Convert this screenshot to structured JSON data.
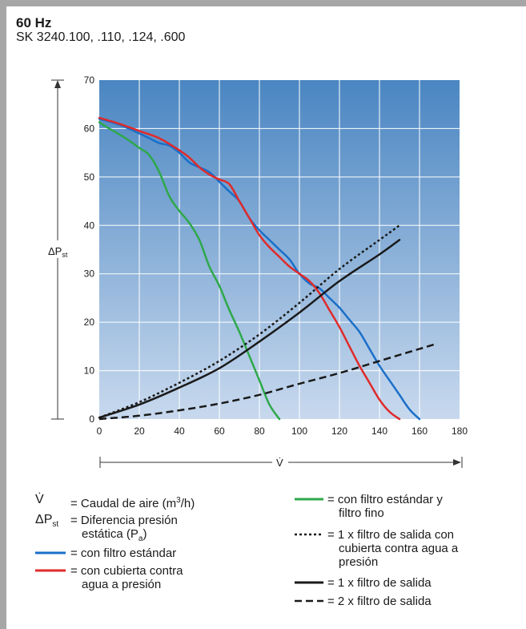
{
  "header": {
    "title": "60 Hz",
    "subtitle": "SK 3240.100, .110, .124, .600"
  },
  "axis_labels": {
    "y_symbol": "ΔP",
    "y_sub": "st",
    "x_symbol": "V̇"
  },
  "legend": {
    "v_symbol": "V̇",
    "v_text_a": "= Caudal de aire (m",
    "v_text_sup": "3",
    "v_text_b": "/h)",
    "p_symbol": "ΔP",
    "p_sub": "st",
    "p_text_1": "= Diferencia presión",
    "p_text_2a": "estática (P",
    "p_text_2sub": "a",
    "p_text_2b": ")",
    "blue_1": "= con filtro estándar",
    "red_1": "= con cubierta contra",
    "red_2": "agua a presión",
    "green_1": "= con filtro estándar y",
    "green_2": "filtro fino",
    "dotted_1": "= 1 x filtro de salida con",
    "dotted_2": "cubierta contra agua a",
    "dotted_3": "presión",
    "solid_1": "= 1 x filtro de salida",
    "dashed_1": "= 2 x filtro de salida"
  },
  "chart_data": {
    "type": "line",
    "title": "",
    "xlabel": "V̇",
    "ylabel": "ΔPst",
    "xlim": [
      0,
      180
    ],
    "ylim": [
      0,
      70
    ],
    "xticks": [
      "0",
      "20",
      "40",
      "60",
      "80",
      "100",
      "120",
      "140",
      "160",
      "180"
    ],
    "yticks": [
      "0",
      "10",
      "20",
      "30",
      "40",
      "50",
      "60",
      "70"
    ],
    "grid": true,
    "background": "blue-gradient",
    "series": [
      {
        "name": "con filtro estándar",
        "color": "#1a6fc9",
        "style": "solid",
        "x": [
          0,
          10,
          20,
          25,
          30,
          35,
          40,
          45,
          50,
          55,
          60,
          65,
          70,
          75,
          80,
          85,
          90,
          95,
          100,
          105,
          110,
          115,
          120,
          125,
          130,
          135,
          140,
          145,
          150,
          155,
          160
        ],
        "y": [
          62,
          60.8,
          59,
          58,
          57,
          56.5,
          55,
          53,
          52,
          51,
          49,
          47,
          45,
          41.5,
          39,
          37,
          35,
          33,
          30,
          28,
          27,
          25,
          23,
          20.5,
          18,
          14.5,
          11,
          8,
          5,
          2,
          0
        ]
      },
      {
        "name": "con cubierta contra agua a presión",
        "color": "#e02a2a",
        "style": "solid",
        "x": [
          0,
          10,
          20,
          30,
          40,
          45,
          50,
          55,
          60,
          65,
          70,
          75,
          80,
          85,
          90,
          95,
          100,
          105,
          110,
          115,
          120,
          125,
          130,
          135,
          140,
          145,
          150
        ],
        "y": [
          62.2,
          61,
          59.5,
          58,
          55.5,
          54,
          52,
          50.5,
          49.5,
          48.5,
          45,
          41.5,
          38,
          35.5,
          33.5,
          31.5,
          30,
          28.5,
          26,
          22.5,
          19,
          15,
          11,
          7.5,
          4,
          1.5,
          0
        ]
      },
      {
        "name": "con filtro estándar y filtro fino",
        "color": "#2ea84a",
        "style": "solid",
        "x": [
          0,
          5,
          10,
          15,
          20,
          25,
          30,
          35,
          40,
          45,
          50,
          55,
          60,
          65,
          70,
          75,
          80,
          85,
          90
        ],
        "y": [
          61.3,
          60,
          58.8,
          57.5,
          56,
          54.5,
          51,
          46,
          43,
          40.5,
          37,
          31.5,
          27.5,
          22.5,
          18,
          13,
          8,
          3,
          0
        ]
      },
      {
        "name": "1 x filtro de salida con cubierta contra agua a presión",
        "color": "#1a1a1a",
        "style": "dotted",
        "x": [
          0,
          20,
          40,
          60,
          80,
          100,
          120,
          140,
          150
        ],
        "y": [
          0.3,
          3.5,
          7.5,
          12,
          17.5,
          24,
          31,
          37,
          40
        ]
      },
      {
        "name": "1 x filtro de salida",
        "color": "#1a1a1a",
        "style": "solid",
        "x": [
          0,
          20,
          40,
          60,
          80,
          100,
          120,
          140,
          150
        ],
        "y": [
          0.3,
          3,
          6.5,
          10.5,
          16,
          22,
          28.5,
          34,
          37
        ]
      },
      {
        "name": "2 x filtro de salida",
        "color": "#1a1a1a",
        "style": "dashed",
        "x": [
          0,
          20,
          40,
          60,
          80,
          100,
          120,
          140,
          160,
          168
        ],
        "y": [
          0,
          0.7,
          1.8,
          3.2,
          5,
          7.3,
          9.5,
          12,
          14.5,
          15.5
        ]
      }
    ]
  }
}
